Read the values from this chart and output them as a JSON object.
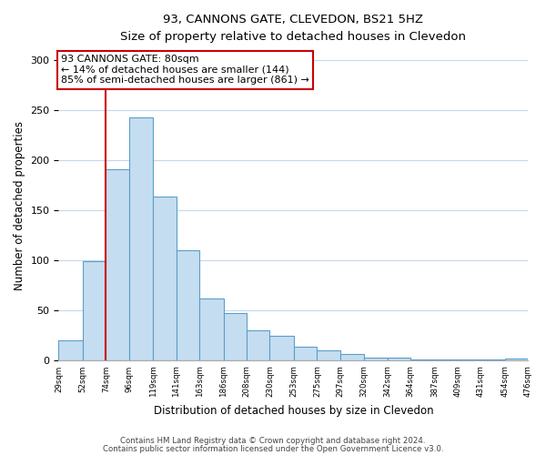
{
  "title": "93, CANNONS GATE, CLEVEDON, BS21 5HZ",
  "subtitle": "Size of property relative to detached houses in Clevedon",
  "xlabel": "Distribution of detached houses by size in Clevedon",
  "ylabel": "Number of detached properties",
  "bar_values": [
    20,
    99,
    191,
    243,
    164,
    110,
    62,
    48,
    30,
    25,
    14,
    10,
    7,
    3,
    3,
    1,
    1,
    1,
    1,
    2
  ],
  "bin_edges": [
    29,
    52,
    74,
    96,
    119,
    141,
    163,
    186,
    208,
    230,
    253,
    275,
    297,
    320,
    342,
    364,
    387,
    409,
    431,
    454,
    476
  ],
  "tick_labels": [
    "29sqm",
    "52sqm",
    "74sqm",
    "96sqm",
    "119sqm",
    "141sqm",
    "163sqm",
    "186sqm",
    "208sqm",
    "230sqm",
    "253sqm",
    "275sqm",
    "297sqm",
    "320sqm",
    "342sqm",
    "364sqm",
    "387sqm",
    "409sqm",
    "431sqm",
    "454sqm",
    "476sqm"
  ],
  "bar_color": "#c5ddf0",
  "bar_edge_color": "#5b9ec9",
  "marker_line_bin": 2,
  "marker_color": "#cc0000",
  "ylim": [
    0,
    310
  ],
  "yticks": [
    0,
    50,
    100,
    150,
    200,
    250,
    300
  ],
  "annotation_line1": "93 CANNONS GATE: 80sqm",
  "annotation_line2": "← 14% of detached houses are smaller (144)",
  "annotation_line3": "85% of semi-detached houses are larger (861) →",
  "annotation_box_color": "#ffffff",
  "annotation_box_edge": "#cc0000",
  "footnote1": "Contains HM Land Registry data © Crown copyright and database right 2024.",
  "footnote2": "Contains public sector information licensed under the Open Government Licence v3.0."
}
